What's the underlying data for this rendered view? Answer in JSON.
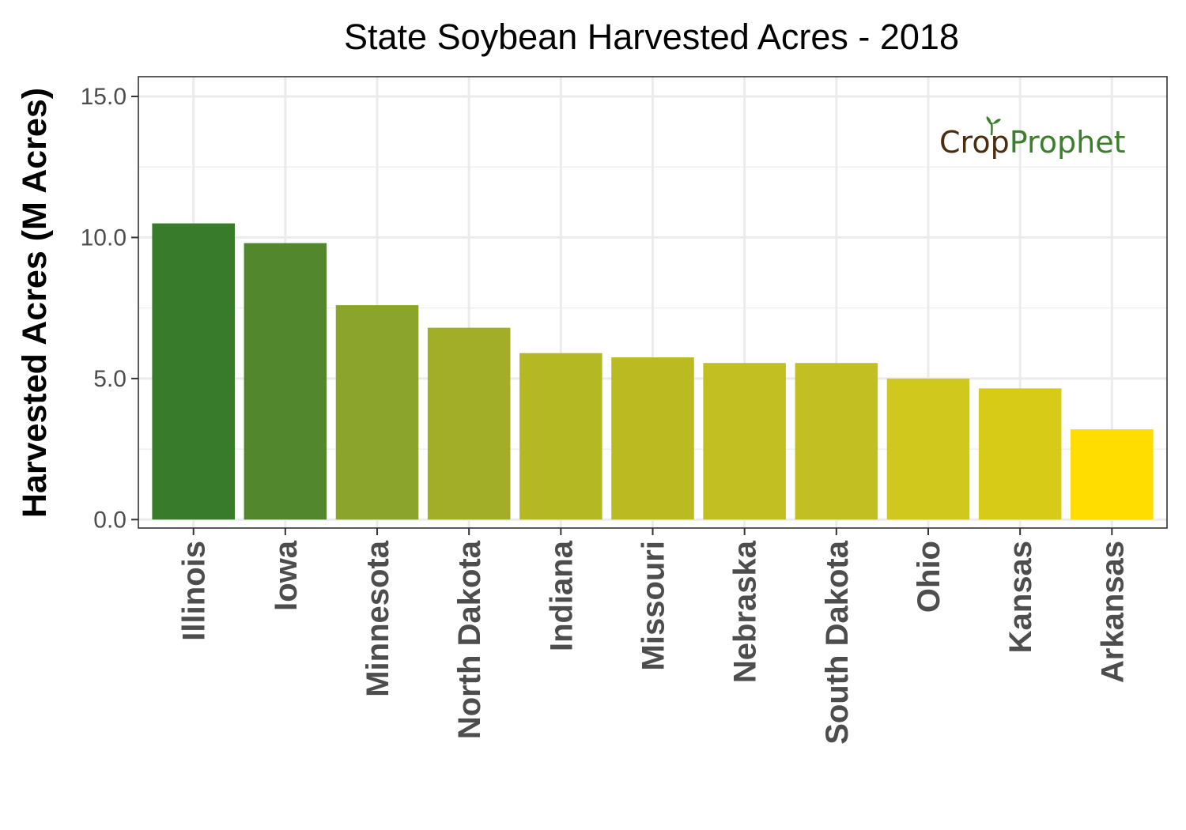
{
  "chart_data": {
    "type": "bar",
    "title": "State Soybean Harvested Acres - 2018",
    "xlabel": "",
    "ylabel": "Harvested Acres (M Acres)",
    "ylim": [
      -0.3,
      15.7
    ],
    "yticks": [
      "0.0",
      "5.0",
      "10.0",
      "15.0"
    ],
    "ytick_values": [
      0,
      5,
      10,
      15
    ],
    "grid": true,
    "categories": [
      "Illinois",
      "Iowa",
      "Minnesota",
      "North Dakota",
      "Indiana",
      "Missouri",
      "Nebraska",
      "South Dakota",
      "Ohio",
      "Kansas",
      "Arkansas"
    ],
    "values": [
      10.5,
      9.8,
      7.6,
      6.8,
      5.9,
      5.75,
      5.55,
      5.55,
      5.0,
      4.65,
      3.2
    ],
    "colors": [
      "#377B2B",
      "#52872E",
      "#8AA42C",
      "#A2AE28",
      "#B4B923",
      "#BBBB21",
      "#C1BF21",
      "#C2BF22",
      "#D0C81C",
      "#D7CB17",
      "#FFDD00"
    ]
  },
  "logo": {
    "part1": "Cr",
    "part2": "p",
    "part3": "Prophet",
    "colors": {
      "dark": "#4A2C0F",
      "green": "#3C7E2C"
    }
  }
}
